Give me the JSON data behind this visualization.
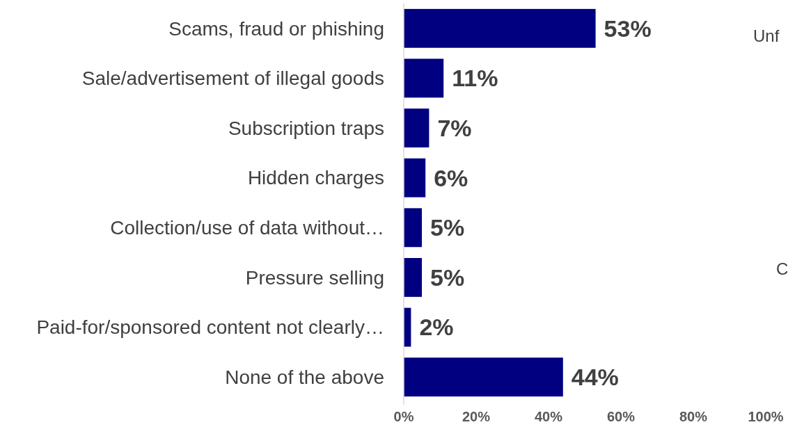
{
  "chart_data": {
    "type": "bar",
    "orientation": "horizontal",
    "categories": [
      "Scams, fraud or phishing",
      "Sale/advertisement of illegal goods",
      "Subscription traps",
      "Hidden charges",
      "Collection/use of data without…",
      "Pressure selling",
      "Paid-for/sponsored content not clearly…",
      "None of the above"
    ],
    "values": [
      53,
      11,
      7,
      6,
      5,
      5,
      2,
      44
    ],
    "color": "#000080",
    "xlim": [
      0,
      100
    ],
    "xticks": [
      {
        "value": 0,
        "label": "0%"
      },
      {
        "value": 20,
        "label": "20%"
      },
      {
        "value": 40,
        "label": "40%"
      },
      {
        "value": 60,
        "label": "60%"
      },
      {
        "value": 80,
        "label": "80%"
      },
      {
        "value": 100,
        "label": "100%"
      }
    ],
    "data_labels": true,
    "value_labels": [
      "53%",
      "11%",
      "7%",
      "6%",
      "5%",
      "5%",
      "2%",
      "44%"
    ],
    "grid": false,
    "annotations": [
      "Unf",
      "C"
    ]
  }
}
